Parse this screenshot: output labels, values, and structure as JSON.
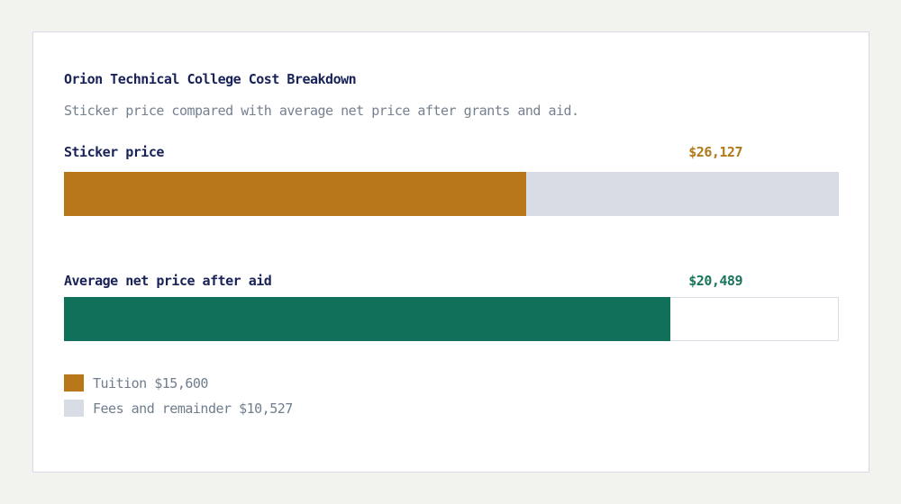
{
  "card": {
    "title": "Orion Technical College Cost Breakdown",
    "subtitle": "Sticker price compared with average net price after grants and aid."
  },
  "colors": {
    "page_background": "#f2f2ef",
    "card_background": "#ffffff",
    "card_border": "#d6dbe4",
    "heading_navy": "#182257",
    "muted_gray_blue": "#75818f",
    "tuition_orange": "#b87719",
    "fees_gray": "#d8dce5",
    "net_price_teal": "#11705a"
  },
  "chart_data": {
    "type": "bar",
    "orientation": "horizontal",
    "title": "Orion Technical College Cost Breakdown",
    "subtitle": "Sticker price compared with average net price after grants and aid.",
    "max_value": 26127,
    "grid": false,
    "legend_position": "bottom-left",
    "rows": [
      {
        "label": "Sticker price",
        "value": 26127,
        "value_label": "$26,127",
        "value_color": "#b07a1a",
        "segments": [
          {
            "name": "Tuition",
            "value": 15600,
            "color": "#b87719"
          },
          {
            "name": "Fees and remainder",
            "value": 10527,
            "color": "#d8dce5"
          }
        ]
      },
      {
        "label": "Average net price after aid",
        "value": 20489,
        "value_label": "$20,489",
        "value_color": "#18755c",
        "segments": [
          {
            "name": "Net price",
            "value": 20489,
            "color": "#11705a"
          }
        ]
      }
    ],
    "legend": [
      {
        "label": "Tuition $15,600",
        "color": "#b87719"
      },
      {
        "label": "Fees and remainder $10,527",
        "color": "#d8dce5"
      }
    ]
  }
}
